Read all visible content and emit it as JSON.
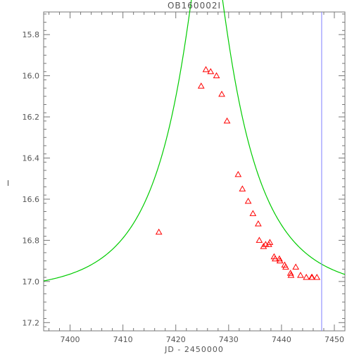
{
  "chart_data": {
    "type": "scatter",
    "title": "OB160002I",
    "xlabel": "JD - 2450000",
    "ylabel": "I",
    "xlim": [
      7395,
      7452
    ],
    "ylim": [
      17.24,
      15.69
    ],
    "y_inverted": true,
    "x_ticks": [
      7400,
      7410,
      7420,
      7430,
      7440,
      7450
    ],
    "y_ticks": [
      15.8,
      16.0,
      16.2,
      16.4,
      16.6,
      16.8,
      17.0,
      17.2
    ],
    "x_tick_labels": [
      "7400",
      "7410",
      "7420",
      "7430",
      "7440",
      "7450"
    ],
    "y_tick_labels": [
      "15.8",
      "16.0",
      "16.2",
      "16.4",
      "16.6",
      "16.8",
      "17.0",
      "17.2"
    ],
    "grid": false,
    "series": [
      {
        "kind": "scatter",
        "marker": "triangle",
        "color": "#ff0000",
        "points": [
          [
            7416.8,
            16.76
          ],
          [
            7424.8,
            16.05
          ],
          [
            7425.7,
            15.97
          ],
          [
            7426.6,
            15.98
          ],
          [
            7427.7,
            16.0
          ],
          [
            7428.7,
            16.09
          ],
          [
            7429.7,
            16.22
          ],
          [
            7431.8,
            16.48
          ],
          [
            7432.6,
            16.55
          ],
          [
            7433.7,
            16.61
          ],
          [
            7434.6,
            16.67
          ],
          [
            7435.6,
            16.72
          ],
          [
            7435.8,
            16.8
          ],
          [
            7436.6,
            16.83
          ],
          [
            7437.0,
            16.82
          ],
          [
            7437.6,
            16.82
          ],
          [
            7437.8,
            16.81
          ],
          [
            7438.6,
            16.88
          ],
          [
            7438.8,
            16.89
          ],
          [
            7439.6,
            16.89
          ],
          [
            7439.7,
            16.9
          ],
          [
            7440.6,
            16.92
          ],
          [
            7440.8,
            16.93
          ],
          [
            7441.7,
            16.96
          ],
          [
            7441.8,
            16.97
          ],
          [
            7442.7,
            16.93
          ],
          [
            7443.6,
            16.97
          ],
          [
            7444.7,
            16.98
          ],
          [
            7445.7,
            16.98
          ],
          [
            7445.8,
            16.98
          ],
          [
            7446.7,
            16.98
          ]
        ]
      },
      {
        "kind": "line",
        "color": "#00cc00",
        "model": {
          "t0": 7425.9,
          "u0": 0.19,
          "tE": 14.5,
          "I_base": 17.05
        }
      }
    ],
    "vline": {
      "x": 7447.6,
      "color": "#8080ff"
    }
  }
}
